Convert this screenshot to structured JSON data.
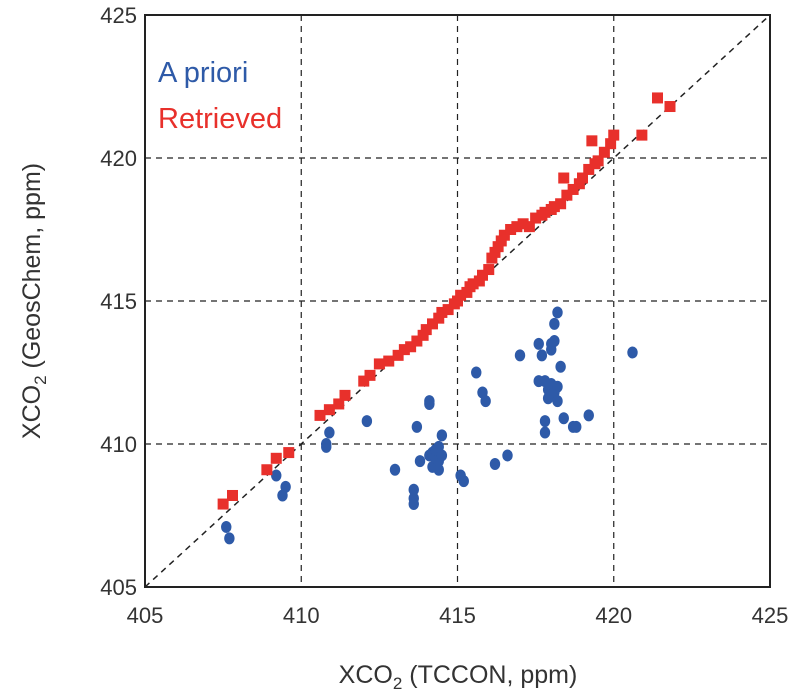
{
  "chart_data": {
    "type": "scatter",
    "title": "",
    "xlabel": {
      "prefix": "XCO",
      "sub": "2",
      "suffix": " (TCCON, ppm)"
    },
    "ylabel": {
      "prefix": "XCO",
      "sub": "2",
      "suffix": " (GeosChem, ppm)"
    },
    "xlim": [
      405,
      425
    ],
    "ylim": [
      405,
      425
    ],
    "xticks": [
      405,
      410,
      415,
      420,
      425
    ],
    "yticks": [
      405,
      410,
      415,
      420,
      425
    ],
    "grid": true,
    "one_to_one_line": true,
    "legend_position": "top-left",
    "series": [
      {
        "name": "A priori",
        "color": "#2e5aa8",
        "marker": "circle",
        "points": [
          [
            407.6,
            407.1
          ],
          [
            407.7,
            406.7
          ],
          [
            409.2,
            408.9
          ],
          [
            409.4,
            408.2
          ],
          [
            409.5,
            408.5
          ],
          [
            410.8,
            410.0
          ],
          [
            410.9,
            410.4
          ],
          [
            410.8,
            409.9
          ],
          [
            412.1,
            410.8
          ],
          [
            413.0,
            409.1
          ],
          [
            413.6,
            408.1
          ],
          [
            413.6,
            407.9
          ],
          [
            413.6,
            408.4
          ],
          [
            413.7,
            410.6
          ],
          [
            413.8,
            409.4
          ],
          [
            414.1,
            411.5
          ],
          [
            414.1,
            411.4
          ],
          [
            414.1,
            409.6
          ],
          [
            414.2,
            409.7
          ],
          [
            414.2,
            409.2
          ],
          [
            414.3,
            409.5
          ],
          [
            414.3,
            409.8
          ],
          [
            414.4,
            409.4
          ],
          [
            414.4,
            409.1
          ],
          [
            414.4,
            409.9
          ],
          [
            414.5,
            410.3
          ],
          [
            414.5,
            409.6
          ],
          [
            415.1,
            408.9
          ],
          [
            415.2,
            408.7
          ],
          [
            415.6,
            412.5
          ],
          [
            415.8,
            411.8
          ],
          [
            415.9,
            411.5
          ],
          [
            416.2,
            409.3
          ],
          [
            416.6,
            409.6
          ],
          [
            417.0,
            413.1
          ],
          [
            417.6,
            412.2
          ],
          [
            417.6,
            413.5
          ],
          [
            417.7,
            413.1
          ],
          [
            417.8,
            412.2
          ],
          [
            417.8,
            410.8
          ],
          [
            417.8,
            410.4
          ],
          [
            417.9,
            411.6
          ],
          [
            417.9,
            411.9
          ],
          [
            418.0,
            412.1
          ],
          [
            418.0,
            413.3
          ],
          [
            418.0,
            413.5
          ],
          [
            418.1,
            414.2
          ],
          [
            418.1,
            411.8
          ],
          [
            418.1,
            413.6
          ],
          [
            418.2,
            414.6
          ],
          [
            418.2,
            412.0
          ],
          [
            418.2,
            411.5
          ],
          [
            418.3,
            412.7
          ],
          [
            418.4,
            410.9
          ],
          [
            418.7,
            410.6
          ],
          [
            418.8,
            410.6
          ],
          [
            419.2,
            411.0
          ],
          [
            420.6,
            413.2
          ]
        ]
      },
      {
        "name": "Retrieved",
        "color": "#e8302b",
        "marker": "square",
        "points": [
          [
            407.5,
            407.9
          ],
          [
            407.8,
            408.2
          ],
          [
            408.9,
            409.1
          ],
          [
            409.2,
            409.5
          ],
          [
            409.6,
            409.7
          ],
          [
            410.6,
            411.0
          ],
          [
            410.9,
            411.2
          ],
          [
            411.2,
            411.4
          ],
          [
            411.4,
            411.7
          ],
          [
            412.0,
            412.2
          ],
          [
            412.2,
            412.4
          ],
          [
            412.5,
            412.8
          ],
          [
            412.8,
            412.9
          ],
          [
            413.1,
            413.1
          ],
          [
            413.3,
            413.3
          ],
          [
            413.5,
            413.4
          ],
          [
            413.7,
            413.6
          ],
          [
            413.9,
            413.8
          ],
          [
            414.0,
            414.0
          ],
          [
            414.2,
            414.2
          ],
          [
            414.4,
            414.4
          ],
          [
            414.5,
            414.6
          ],
          [
            414.7,
            414.7
          ],
          [
            414.9,
            414.9
          ],
          [
            415.0,
            415.0
          ],
          [
            415.1,
            415.2
          ],
          [
            415.3,
            415.3
          ],
          [
            415.4,
            415.5
          ],
          [
            415.5,
            415.6
          ],
          [
            415.7,
            415.7
          ],
          [
            415.8,
            415.9
          ],
          [
            416.0,
            416.1
          ],
          [
            416.1,
            416.5
          ],
          [
            416.2,
            416.7
          ],
          [
            416.3,
            416.9
          ],
          [
            416.4,
            417.1
          ],
          [
            416.5,
            417.3
          ],
          [
            416.7,
            417.5
          ],
          [
            416.9,
            417.6
          ],
          [
            417.1,
            417.7
          ],
          [
            417.3,
            417.6
          ],
          [
            417.5,
            417.9
          ],
          [
            417.7,
            418.0
          ],
          [
            417.8,
            418.1
          ],
          [
            418.0,
            418.2
          ],
          [
            418.1,
            418.3
          ],
          [
            418.3,
            418.4
          ],
          [
            418.5,
            418.7
          ],
          [
            418.7,
            418.9
          ],
          [
            418.9,
            419.1
          ],
          [
            419.0,
            419.3
          ],
          [
            419.2,
            419.6
          ],
          [
            419.4,
            419.8
          ],
          [
            419.5,
            419.9
          ],
          [
            419.7,
            420.2
          ],
          [
            419.9,
            420.5
          ],
          [
            420.0,
            420.8
          ],
          [
            419.3,
            420.6
          ],
          [
            418.4,
            419.3
          ],
          [
            420.9,
            420.8
          ],
          [
            421.4,
            422.1
          ],
          [
            421.8,
            421.8
          ]
        ]
      }
    ]
  }
}
